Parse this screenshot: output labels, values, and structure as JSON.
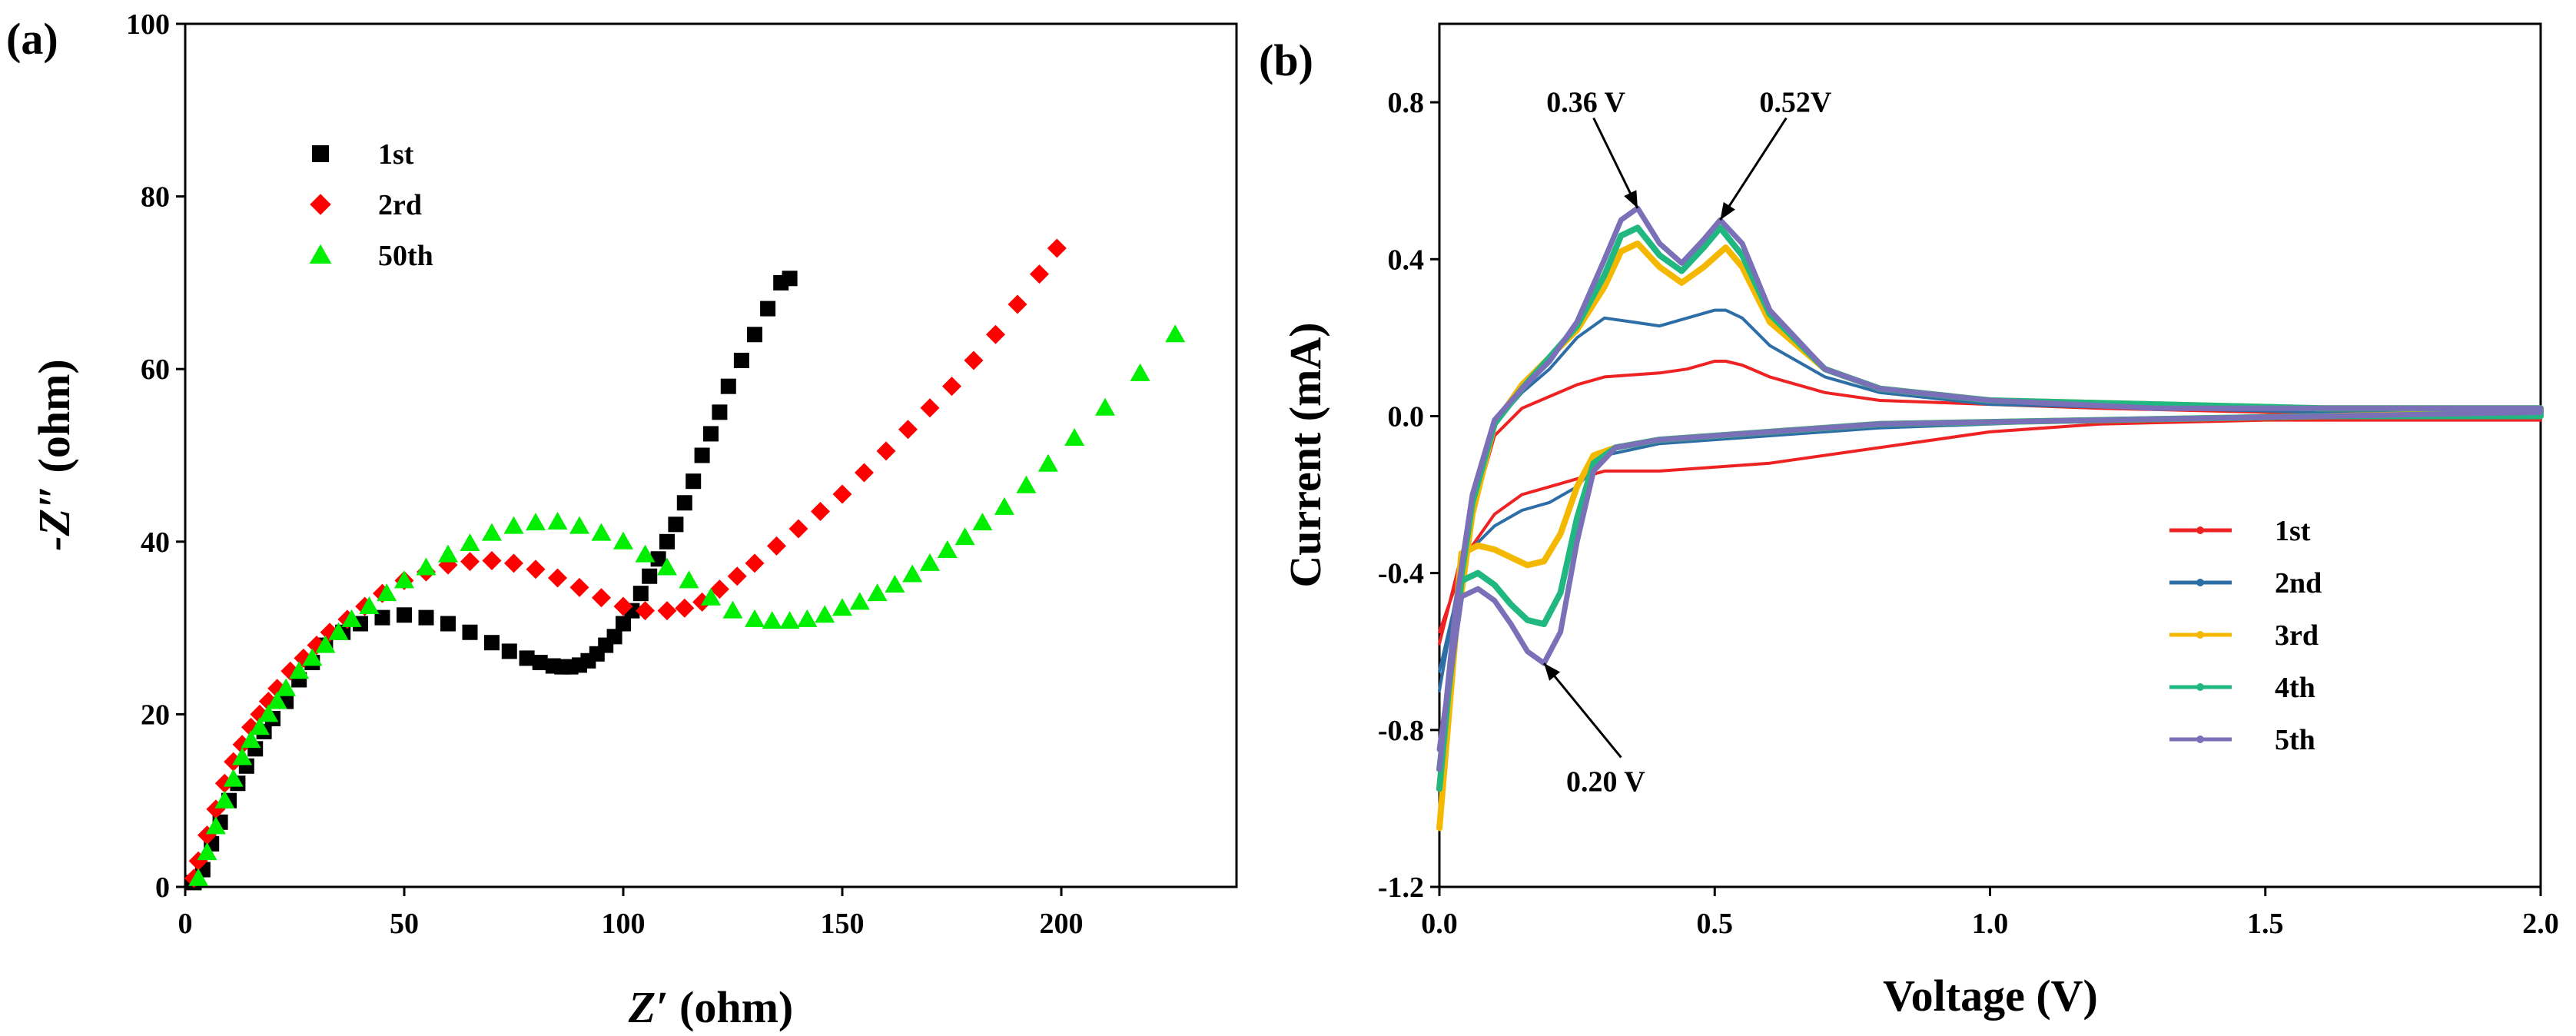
{
  "chart_data": [
    {
      "panel": "(a)",
      "type": "scatter",
      "xlabel_italic": "Z′",
      "xlabel_unit": " (ohm)",
      "ylabel_italic": "-Z″",
      "ylabel_unit": " (ohm)",
      "xlim": [
        0,
        240
      ],
      "ylim": [
        0,
        100
      ],
      "xticks": [
        0,
        50,
        100,
        150,
        200
      ],
      "yticks": [
        0,
        20,
        40,
        60,
        80,
        100
      ],
      "legend_position": "top-left",
      "series": [
        {
          "name": "1st",
          "color": "#000000",
          "marker": "square",
          "x": [
            2,
            4,
            6,
            8,
            10,
            12,
            14,
            16,
            18,
            20,
            23,
            26,
            29,
            32,
            36,
            40,
            45,
            50,
            55,
            60,
            65,
            70,
            74,
            78,
            81,
            84,
            86,
            88,
            90,
            92,
            94,
            96,
            98,
            100,
            102,
            104,
            106,
            108,
            110,
            112,
            114,
            116,
            118,
            120,
            122,
            124,
            127,
            130,
            133,
            136,
            138
          ],
          "y": [
            0.5,
            2,
            5,
            7.5,
            10,
            12,
            14,
            16,
            18,
            19.5,
            21.5,
            24,
            26,
            28,
            29.5,
            30.5,
            31.2,
            31.5,
            31.2,
            30.5,
            29.5,
            28.3,
            27.3,
            26.5,
            26,
            25.6,
            25.5,
            25.5,
            25.7,
            26.2,
            27,
            28,
            29,
            30.5,
            32,
            34,
            36,
            38,
            40,
            42,
            44.5,
            47,
            50,
            52.5,
            55,
            58,
            61,
            64,
            67,
            70,
            70.5
          ]
        },
        {
          "name": "2rd",
          "color": "#ff0000",
          "marker": "diamond",
          "x": [
            2,
            3,
            5,
            7,
            9,
            11,
            13,
            15,
            17,
            19,
            21,
            24,
            27,
            30,
            33,
            37,
            41,
            45,
            50,
            55,
            60,
            65,
            70,
            75,
            80,
            85,
            90,
            95,
            100,
            105,
            110,
            114,
            118,
            122,
            126,
            130,
            135,
            140,
            145,
            150,
            155,
            160,
            165,
            170,
            175,
            180,
            185,
            190,
            195,
            199
          ],
          "y": [
            1,
            3,
            6,
            9,
            12,
            14.5,
            16.5,
            18.5,
            20,
            21.5,
            23,
            25,
            26.5,
            28,
            29.5,
            31,
            32.5,
            34,
            35.5,
            36.5,
            37.3,
            37.7,
            37.8,
            37.5,
            36.8,
            35.8,
            34.7,
            33.5,
            32.5,
            32,
            32,
            32.3,
            33,
            34.5,
            36,
            37.5,
            39.5,
            41.5,
            43.5,
            45.5,
            48,
            50.5,
            53,
            55.5,
            58,
            61,
            64,
            67.5,
            71,
            74
          ]
        },
        {
          "name": "50th",
          "color": "#00ee00",
          "marker": "triangle",
          "x": [
            3,
            5,
            7,
            9,
            11,
            13,
            15,
            17,
            19,
            21,
            23,
            26,
            29,
            32,
            35,
            38,
            42,
            46,
            50,
            55,
            60,
            65,
            70,
            75,
            80,
            85,
            90,
            95,
            100,
            105,
            110,
            115,
            120,
            125,
            130,
            134,
            138,
            142,
            146,
            150,
            154,
            158,
            162,
            166,
            170,
            174,
            178,
            182,
            187,
            192,
            197,
            203,
            210,
            218,
            226
          ],
          "y": [
            1,
            4,
            7,
            10,
            12.5,
            15,
            17,
            18.5,
            20,
            21.5,
            23,
            25,
            26.5,
            28,
            29.5,
            31,
            32.5,
            34,
            35.5,
            37,
            38.5,
            39.8,
            41,
            41.8,
            42.2,
            42.3,
            41.8,
            41,
            40,
            38.5,
            37,
            35.5,
            33.5,
            32,
            31,
            30.8,
            30.8,
            31,
            31.5,
            32.3,
            33,
            34,
            35,
            36.2,
            37.5,
            39,
            40.5,
            42.2,
            44,
            46.5,
            49,
            52,
            55.5,
            59.5,
            64
          ]
        }
      ]
    },
    {
      "panel": "(b)",
      "type": "line",
      "xlabel": "Voltage (V)",
      "ylabel": "Current (mA)",
      "xlim": [
        0.0,
        2.0
      ],
      "ylim": [
        -1.2,
        1.0
      ],
      "xticks": [
        "0.0",
        "0.5",
        "1.0",
        "1.5",
        "2.0"
      ],
      "yticks": [
        "-1.2",
        "-0.8",
        "-0.4",
        "0.0",
        "0.4",
        "0.8"
      ],
      "legend_position": "bottom-right",
      "annotations": [
        {
          "text": "0.36 V",
          "at": [
            0.36,
            0.53
          ],
          "from": [
            0.28,
            0.76
          ]
        },
        {
          "text": "0.52V",
          "at": [
            0.51,
            0.5
          ],
          "from": [
            0.63,
            0.76
          ]
        },
        {
          "text": "0.20 V",
          "at": [
            0.19,
            -0.63
          ],
          "from": [
            0.33,
            -0.87
          ]
        }
      ],
      "series": [
        {
          "name": "1st",
          "color": "#ee2222",
          "x": [
            0.0,
            0.05,
            0.1,
            0.15,
            0.2,
            0.25,
            0.3,
            0.4,
            0.45,
            0.5,
            0.52,
            0.55,
            0.6,
            0.7,
            0.8,
            1.0,
            1.2,
            1.5,
            1.75,
            2.0,
            2.0,
            1.75,
            1.5,
            1.2,
            1.0,
            0.8,
            0.6,
            0.4,
            0.3,
            0.25,
            0.2,
            0.15,
            0.1,
            0.05,
            0.0
          ],
          "y": [
            -0.58,
            -0.3,
            -0.05,
            0.02,
            0.05,
            0.08,
            0.1,
            0.11,
            0.12,
            0.14,
            0.14,
            0.13,
            0.1,
            0.06,
            0.04,
            0.03,
            0.02,
            0.01,
            0.0,
            0.0,
            -0.01,
            -0.01,
            -0.01,
            -0.02,
            -0.04,
            -0.08,
            -0.12,
            -0.14,
            -0.14,
            -0.16,
            -0.18,
            -0.2,
            -0.25,
            -0.35,
            -0.55
          ]
        },
        {
          "name": "2nd",
          "color": "#2e6ea6",
          "x": [
            0.0,
            0.05,
            0.1,
            0.15,
            0.2,
            0.25,
            0.3,
            0.35,
            0.4,
            0.45,
            0.5,
            0.52,
            0.55,
            0.6,
            0.7,
            0.8,
            1.0,
            1.3,
            1.6,
            2.0,
            2.0,
            1.6,
            1.2,
            0.8,
            0.6,
            0.4,
            0.3,
            0.25,
            0.2,
            0.15,
            0.1,
            0.05,
            0.0
          ],
          "y": [
            -0.7,
            -0.3,
            -0.02,
            0.06,
            0.12,
            0.2,
            0.25,
            0.24,
            0.23,
            0.25,
            0.27,
            0.27,
            0.25,
            0.18,
            0.1,
            0.06,
            0.03,
            0.02,
            0.01,
            0.01,
            0.0,
            0.0,
            -0.01,
            -0.03,
            -0.05,
            -0.07,
            -0.1,
            -0.18,
            -0.22,
            -0.24,
            -0.28,
            -0.35,
            -0.65
          ]
        },
        {
          "name": "3rd",
          "color": "#f5b800",
          "x": [
            0.0,
            0.03,
            0.06,
            0.1,
            0.15,
            0.2,
            0.25,
            0.3,
            0.33,
            0.36,
            0.4,
            0.44,
            0.48,
            0.52,
            0.55,
            0.6,
            0.7,
            0.8,
            1.0,
            1.3,
            1.6,
            2.0,
            2.0,
            1.6,
            1.2,
            0.8,
            0.6,
            0.4,
            0.32,
            0.28,
            0.25,
            0.22,
            0.19,
            0.16,
            0.13,
            0.1,
            0.07,
            0.04,
            0.0
          ],
          "y": [
            -1.05,
            -0.55,
            -0.25,
            -0.02,
            0.08,
            0.15,
            0.22,
            0.33,
            0.42,
            0.44,
            0.38,
            0.34,
            0.38,
            0.43,
            0.38,
            0.24,
            0.12,
            0.07,
            0.04,
            0.03,
            0.02,
            0.02,
            0.01,
            0.0,
            -0.01,
            -0.02,
            -0.04,
            -0.06,
            -0.08,
            -0.1,
            -0.18,
            -0.3,
            -0.37,
            -0.38,
            -0.36,
            -0.34,
            -0.33,
            -0.35,
            -0.95
          ]
        },
        {
          "name": "4th",
          "color": "#20b880",
          "x": [
            0.0,
            0.03,
            0.06,
            0.1,
            0.15,
            0.2,
            0.25,
            0.3,
            0.33,
            0.36,
            0.4,
            0.44,
            0.48,
            0.51,
            0.55,
            0.6,
            0.7,
            0.8,
            1.0,
            1.3,
            1.6,
            2.0,
            2.0,
            1.6,
            1.2,
            0.8,
            0.6,
            0.4,
            0.32,
            0.28,
            0.25,
            0.22,
            0.19,
            0.16,
            0.13,
            0.1,
            0.07,
            0.04,
            0.0
          ],
          "y": [
            -0.95,
            -0.5,
            -0.22,
            -0.02,
            0.07,
            0.15,
            0.23,
            0.36,
            0.46,
            0.48,
            0.41,
            0.37,
            0.43,
            0.48,
            0.41,
            0.26,
            0.12,
            0.07,
            0.04,
            0.03,
            0.02,
            0.02,
            0.0,
            0.0,
            -0.01,
            -0.02,
            -0.04,
            -0.06,
            -0.08,
            -0.12,
            -0.26,
            -0.45,
            -0.53,
            -0.52,
            -0.48,
            -0.43,
            -0.4,
            -0.42,
            -0.9
          ]
        },
        {
          "name": "5th",
          "color": "#7a70b8",
          "x": [
            0.0,
            0.03,
            0.06,
            0.1,
            0.15,
            0.2,
            0.25,
            0.3,
            0.33,
            0.36,
            0.4,
            0.44,
            0.48,
            0.51,
            0.55,
            0.6,
            0.7,
            0.8,
            1.0,
            1.3,
            1.6,
            2.0,
            2.0,
            1.6,
            1.2,
            0.8,
            0.6,
            0.4,
            0.32,
            0.28,
            0.25,
            0.22,
            0.19,
            0.16,
            0.13,
            0.1,
            0.07,
            0.04,
            0.0
          ],
          "y": [
            -0.9,
            -0.48,
            -0.2,
            -0.01,
            0.07,
            0.14,
            0.24,
            0.4,
            0.5,
            0.53,
            0.44,
            0.39,
            0.45,
            0.5,
            0.44,
            0.27,
            0.12,
            0.07,
            0.04,
            0.02,
            0.02,
            0.02,
            0.01,
            0.0,
            -0.01,
            -0.02,
            -0.04,
            -0.06,
            -0.08,
            -0.14,
            -0.32,
            -0.55,
            -0.63,
            -0.6,
            -0.53,
            -0.47,
            -0.44,
            -0.46,
            -0.85
          ]
        }
      ]
    }
  ]
}
